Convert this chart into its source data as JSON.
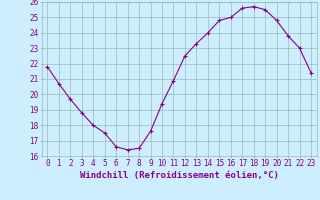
{
  "x": [
    0,
    1,
    2,
    3,
    4,
    5,
    6,
    7,
    8,
    9,
    10,
    11,
    12,
    13,
    14,
    15,
    16,
    17,
    18,
    19,
    20,
    21,
    22,
    23
  ],
  "y": [
    21.8,
    20.7,
    19.7,
    18.8,
    18.0,
    17.5,
    16.6,
    16.4,
    16.5,
    17.6,
    19.4,
    20.9,
    22.5,
    23.3,
    24.0,
    24.8,
    25.0,
    25.6,
    25.7,
    25.5,
    24.8,
    23.8,
    23.0,
    21.4
  ],
  "xlim": [
    -0.5,
    23.5
  ],
  "ylim": [
    16,
    26
  ],
  "yticks": [
    16,
    17,
    18,
    19,
    20,
    21,
    22,
    23,
    24,
    25,
    26
  ],
  "xticks": [
    0,
    1,
    2,
    3,
    4,
    5,
    6,
    7,
    8,
    9,
    10,
    11,
    12,
    13,
    14,
    15,
    16,
    17,
    18,
    19,
    20,
    21,
    22,
    23
  ],
  "xlabel": "Windchill (Refroidissement éolien,°C)",
  "line_color": "#880088",
  "marker": "+",
  "bg_color": "#cceeff",
  "grid_color": "#99bbbb",
  "xlabel_fontsize": 6.5,
  "tick_fontsize": 5.5,
  "label_color": "#880088"
}
